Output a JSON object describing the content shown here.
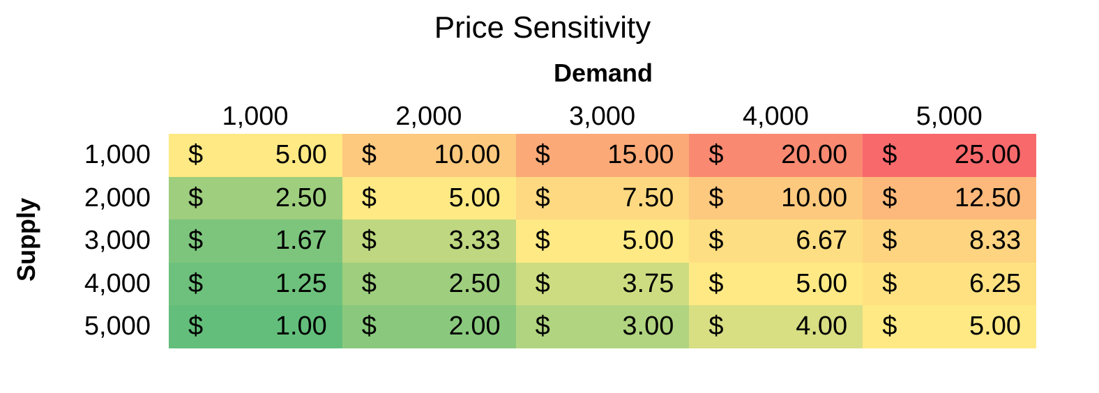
{
  "chart_data": {
    "type": "heatmap",
    "title": "Price Sensitivity",
    "xlabel": "Demand",
    "ylabel": "Supply",
    "x": [
      "1,000",
      "2,000",
      "3,000",
      "4,000",
      "5,000"
    ],
    "y": [
      "1,000",
      "2,000",
      "3,000",
      "4,000",
      "5,000"
    ],
    "currency_symbol": "$",
    "values": [
      [
        "5.00",
        "10.00",
        "15.00",
        "20.00",
        "25.00"
      ],
      [
        "2.50",
        "5.00",
        "7.50",
        "10.00",
        "12.50"
      ],
      [
        "1.67",
        "3.33",
        "5.00",
        "6.67",
        "8.33"
      ],
      [
        "1.25",
        "2.50",
        "3.75",
        "5.00",
        "6.25"
      ],
      [
        "1.00",
        "2.00",
        "3.00",
        "4.00",
        "5.00"
      ]
    ],
    "color_scale": {
      "low": "#63be7b",
      "mid": "#ffe984",
      "high": "#f8696b"
    }
  }
}
